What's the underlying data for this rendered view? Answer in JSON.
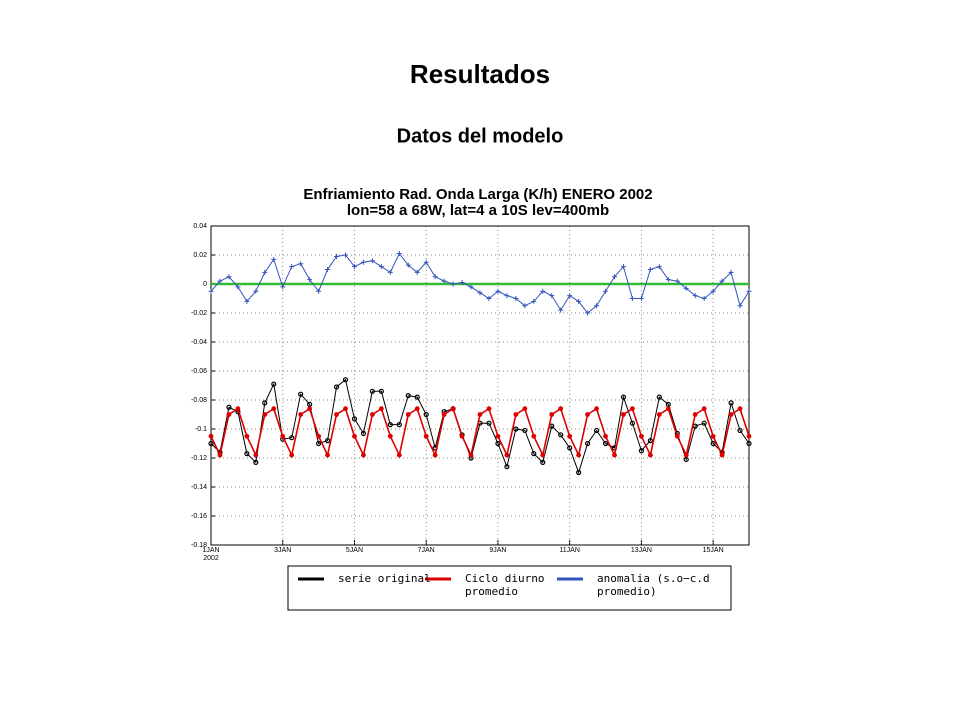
{
  "slide": {
    "title": "Resultados",
    "subtitle": "Datos del modelo"
  },
  "chart_data": {
    "type": "line",
    "title": "Enfriamiento Rad. Onda Larga (K/h) ENERO 2002",
    "subtitle": "lon=58 a 68W, lat=4 a 10S lev=400mb",
    "x": [
      1,
      1.25,
      1.5,
      1.75,
      2,
      2.25,
      2.5,
      2.75,
      3,
      3.25,
      3.5,
      3.75,
      4,
      4.25,
      4.5,
      4.75,
      5,
      5.25,
      5.5,
      5.75,
      6,
      6.25,
      6.5,
      6.75,
      7,
      7.25,
      7.5,
      7.75,
      8,
      8.25,
      8.5,
      8.75,
      9,
      9.25,
      9.5,
      9.75,
      10,
      10.25,
      10.5,
      10.75,
      11,
      11.25,
      11.5,
      11.75,
      12,
      12.25,
      12.5,
      12.75,
      13,
      13.25,
      13.5,
      13.75,
      14,
      14.25,
      14.5,
      14.75,
      15,
      15.25,
      15.5,
      15.75,
      16
    ],
    "series": [
      {
        "name": "serie original",
        "color": "#000000",
        "marker": "circle",
        "values": [
          -0.11,
          -0.116,
          -0.085,
          -0.088,
          -0.117,
          -0.123,
          -0.082,
          -0.069,
          -0.107,
          -0.106,
          -0.076,
          -0.083,
          -0.11,
          -0.108,
          -0.071,
          -0.066,
          -0.093,
          -0.103,
          -0.074,
          -0.074,
          -0.097,
          -0.097,
          -0.077,
          -0.078,
          -0.09,
          -0.113,
          -0.088,
          -0.086,
          -0.104,
          -0.12,
          -0.096,
          -0.096,
          -0.11,
          -0.126,
          -0.1,
          -0.101,
          -0.117,
          -0.123,
          -0.098,
          -0.104,
          -0.113,
          -0.13,
          -0.11,
          -0.101,
          -0.11,
          -0.113,
          -0.078,
          -0.096,
          -0.115,
          -0.108,
          -0.078,
          -0.083,
          -0.103,
          -0.121,
          -0.098,
          -0.096,
          -0.11,
          -0.116,
          -0.082,
          -0.101,
          -0.11
        ]
      },
      {
        "name": "Ciclo diurno promedio",
        "color": "#dd0000",
        "marker": "dot",
        "values": [
          -0.105,
          -0.118,
          -0.09,
          -0.086,
          -0.105,
          -0.118,
          -0.09,
          -0.086,
          -0.105,
          -0.118,
          -0.09,
          -0.086,
          -0.105,
          -0.118,
          -0.09,
          -0.086,
          -0.105,
          -0.118,
          -0.09,
          -0.086,
          -0.105,
          -0.118,
          -0.09,
          -0.086,
          -0.105,
          -0.118,
          -0.09,
          -0.086,
          -0.105,
          -0.118,
          -0.09,
          -0.086,
          -0.105,
          -0.118,
          -0.09,
          -0.086,
          -0.105,
          -0.118,
          -0.09,
          -0.086,
          -0.105,
          -0.118,
          -0.09,
          -0.086,
          -0.105,
          -0.118,
          -0.09,
          -0.086,
          -0.105,
          -0.118,
          -0.09,
          -0.086,
          -0.105,
          -0.118,
          -0.09,
          -0.086,
          -0.105,
          -0.118,
          -0.09,
          -0.086,
          -0.105
        ]
      },
      {
        "name": "anomalia (s.o−c.d promedio)",
        "color": "#3355bb",
        "marker": "plus",
        "values": [
          -0.005,
          0.002,
          0.005,
          -0.002,
          -0.012,
          -0.005,
          0.008,
          0.017,
          -0.002,
          0.012,
          0.014,
          0.003,
          -0.005,
          0.01,
          0.019,
          0.02,
          0.012,
          0.015,
          0.016,
          0.012,
          0.008,
          0.021,
          0.013,
          0.008,
          0.015,
          0.005,
          0.002,
          0.0,
          0.001,
          -0.002,
          -0.006,
          -0.01,
          -0.005,
          -0.008,
          -0.01,
          -0.015,
          -0.012,
          -0.005,
          -0.008,
          -0.018,
          -0.008,
          -0.012,
          -0.02,
          -0.015,
          -0.005,
          0.005,
          0.012,
          -0.01,
          -0.01,
          0.01,
          0.012,
          0.003,
          0.002,
          -0.003,
          -0.008,
          -0.01,
          -0.005,
          0.002,
          0.008,
          -0.015,
          -0.005
        ]
      }
    ],
    "xlim": [
      1,
      16
    ],
    "xticks": [
      {
        "value": 1,
        "label": "1JAN 2002"
      },
      {
        "value": 3,
        "label": "3JAN"
      },
      {
        "value": 5,
        "label": "5JAN"
      },
      {
        "value": 7,
        "label": "7JAN"
      },
      {
        "value": 9,
        "label": "9JAN"
      },
      {
        "value": 11,
        "label": "11JAN"
      },
      {
        "value": 13,
        "label": "13JAN"
      },
      {
        "value": 15,
        "label": "15JAN"
      }
    ],
    "ylim": [
      -0.18,
      0.04
    ],
    "yticks": [
      -0.18,
      -0.16,
      -0.14,
      -0.12,
      -0.1,
      -0.08,
      -0.06,
      -0.04,
      -0.02,
      0,
      0.02,
      0.04
    ],
    "reference_line": {
      "y": 0,
      "color": "#33bb33"
    },
    "grid": true,
    "legend": "bottom"
  }
}
